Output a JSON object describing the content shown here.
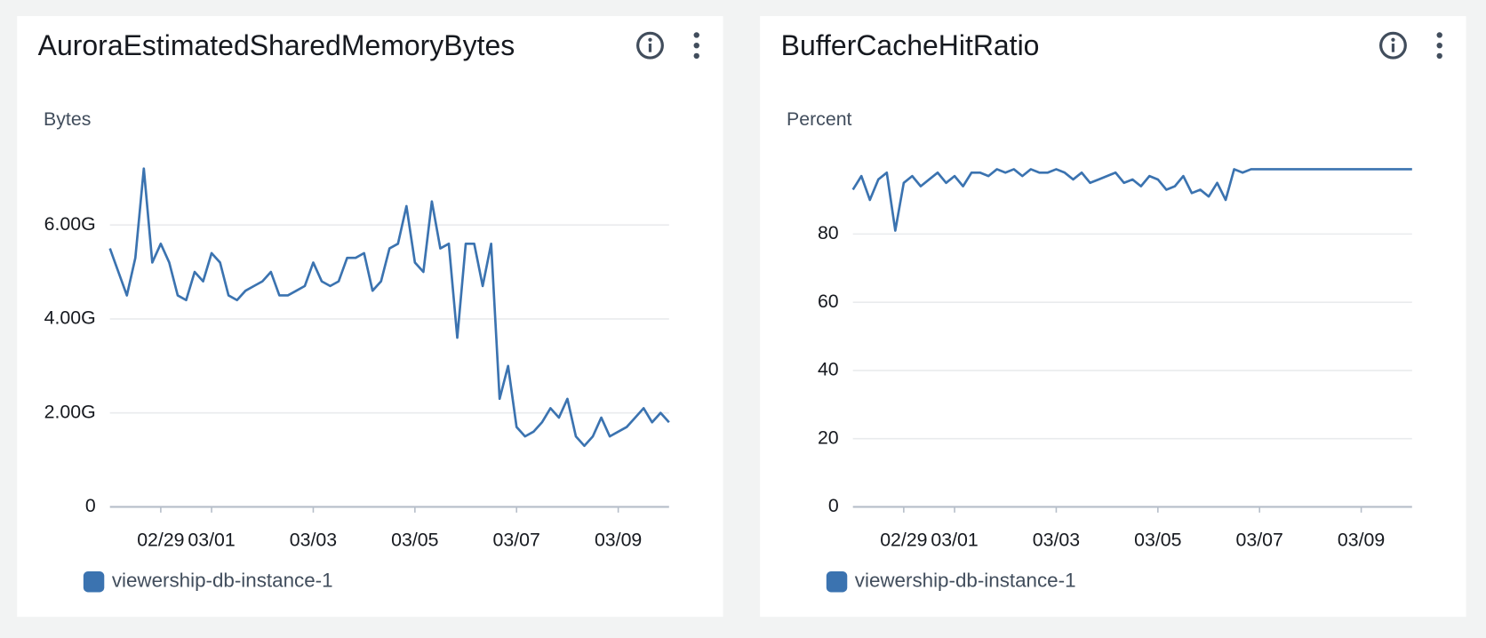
{
  "chart_data": [
    {
      "type": "line",
      "title": "AuroraEstimatedSharedMemoryBytes",
      "y_label": "Bytes",
      "x": [
        "02/28 00:00",
        "02/28 04:00",
        "02/28 08:00",
        "02/28 12:00",
        "02/28 16:00",
        "02/28 20:00",
        "02/29 00:00",
        "02/29 04:00",
        "02/29 08:00",
        "02/29 12:00",
        "02/29 16:00",
        "02/29 20:00",
        "03/01 00:00",
        "03/01 04:00",
        "03/01 08:00",
        "03/01 12:00",
        "03/01 16:00",
        "03/01 20:00",
        "03/02 00:00",
        "03/02 04:00",
        "03/02 08:00",
        "03/02 12:00",
        "03/02 16:00",
        "03/02 20:00",
        "03/03 00:00",
        "03/03 04:00",
        "03/03 08:00",
        "03/03 12:00",
        "03/03 16:00",
        "03/03 20:00",
        "03/04 00:00",
        "03/04 04:00",
        "03/04 08:00",
        "03/04 12:00",
        "03/04 16:00",
        "03/04 20:00",
        "03/05 00:00",
        "03/05 04:00",
        "03/05 08:00",
        "03/05 12:00",
        "03/05 16:00",
        "03/05 20:00",
        "03/06 00:00",
        "03/06 04:00",
        "03/06 08:00",
        "03/06 12:00",
        "03/06 16:00",
        "03/06 20:00",
        "03/07 00:00",
        "03/07 04:00",
        "03/07 08:00",
        "03/07 12:00",
        "03/07 16:00",
        "03/07 20:00",
        "03/08 00:00",
        "03/08 04:00",
        "03/08 08:00",
        "03/08 12:00",
        "03/08 16:00",
        "03/08 20:00",
        "03/09 00:00",
        "03/09 04:00",
        "03/09 08:00",
        "03/09 12:00",
        "03/09 16:00",
        "03/09 20:00",
        "03/10 00:00"
      ],
      "series": [
        {
          "name": "viewership-db-instance-1",
          "color": "#3b73b0",
          "values": [
            5500000000.0,
            5000000000.0,
            4500000000.0,
            5300000000.0,
            7200000000.0,
            5200000000.0,
            5600000000.0,
            5200000000.0,
            4500000000.0,
            4400000000.0,
            5000000000.0,
            4800000000.0,
            5400000000.0,
            5200000000.0,
            4500000000.0,
            4400000000.0,
            4600000000.0,
            4700000000.0,
            4800000000.0,
            5000000000.0,
            4500000000.0,
            4500000000.0,
            4600000000.0,
            4700000000.0,
            5200000000.0,
            4800000000.0,
            4700000000.0,
            4800000000.0,
            5300000000.0,
            5300000000.0,
            5400000000.0,
            4600000000.0,
            4800000000.0,
            5500000000.0,
            5600000000.0,
            6400000000.0,
            5200000000.0,
            5000000000.0,
            6500000000.0,
            5500000000.0,
            5600000000.0,
            3600000000.0,
            5600000000.0,
            5600000000.0,
            4700000000.0,
            5600000000.0,
            2300000000.0,
            3000000000.0,
            1700000000.0,
            1500000000.0,
            1600000000.0,
            1800000000.0,
            2100000000.0,
            1900000000.0,
            2300000000.0,
            1500000000.0,
            1300000000.0,
            1500000000.0,
            1900000000.0,
            1500000000.0,
            1600000000.0,
            1700000000.0,
            1900000000.0,
            2100000000.0,
            1800000000.0,
            2000000000.0,
            1800000000.0
          ]
        }
      ],
      "xlim": [
        "02/28 00:00",
        "03/10 00:00"
      ],
      "xticks": [
        "02/29",
        "03/01",
        "03/03",
        "03/05",
        "03/07",
        "03/09"
      ],
      "ylim": [
        0,
        7500000000.0
      ],
      "yticks": [
        0,
        {
          "value": 2000000000.0,
          "label": "2.00G"
        },
        {
          "value": 4000000000.0,
          "label": "4.00G"
        },
        {
          "value": 6000000000.0,
          "label": "6.00G"
        }
      ],
      "grid": true
    },
    {
      "type": "line",
      "title": "BufferCacheHitRatio",
      "y_label": "Percent",
      "x": [
        "02/28 00:00",
        "02/28 04:00",
        "02/28 08:00",
        "02/28 12:00",
        "02/28 16:00",
        "02/28 20:00",
        "02/29 00:00",
        "02/29 04:00",
        "02/29 08:00",
        "02/29 12:00",
        "02/29 16:00",
        "02/29 20:00",
        "03/01 00:00",
        "03/01 04:00",
        "03/01 08:00",
        "03/01 12:00",
        "03/01 16:00",
        "03/01 20:00",
        "03/02 00:00",
        "03/02 04:00",
        "03/02 08:00",
        "03/02 12:00",
        "03/02 16:00",
        "03/02 20:00",
        "03/03 00:00",
        "03/03 04:00",
        "03/03 08:00",
        "03/03 12:00",
        "03/03 16:00",
        "03/03 20:00",
        "03/04 00:00",
        "03/04 04:00",
        "03/04 08:00",
        "03/04 12:00",
        "03/04 16:00",
        "03/04 20:00",
        "03/05 00:00",
        "03/05 04:00",
        "03/05 08:00",
        "03/05 12:00",
        "03/05 16:00",
        "03/05 20:00",
        "03/06 00:00",
        "03/06 04:00",
        "03/06 08:00",
        "03/06 12:00",
        "03/06 16:00",
        "03/06 20:00",
        "03/07 00:00",
        "03/07 04:00",
        "03/07 08:00",
        "03/07 12:00",
        "03/07 16:00",
        "03/07 20:00",
        "03/08 00:00",
        "03/08 04:00",
        "03/08 08:00",
        "03/08 12:00",
        "03/08 16:00",
        "03/08 20:00",
        "03/09 00:00",
        "03/09 04:00",
        "03/09 08:00",
        "03/09 12:00",
        "03/09 16:00",
        "03/09 20:00",
        "03/10 00:00"
      ],
      "series": [
        {
          "name": "viewership-db-instance-1",
          "color": "#3b73b0",
          "values": [
            93,
            97,
            90,
            96,
            98,
            81,
            95,
            97,
            94,
            96,
            98,
            95,
            97,
            94,
            98,
            98,
            97,
            99,
            98,
            99,
            97,
            99,
            98,
            98,
            99,
            98,
            96,
            98,
            95,
            96,
            97,
            98,
            95,
            96,
            94,
            97,
            96,
            93,
            94,
            97,
            92,
            93,
            91,
            95,
            90,
            99,
            98,
            99,
            99,
            99,
            99,
            99,
            99,
            99,
            99,
            99,
            99,
            99,
            99,
            99,
            99,
            99,
            99,
            99,
            99,
            99,
            99
          ]
        }
      ],
      "xlim": [
        "02/28 00:00",
        "03/10 00:00"
      ],
      "xticks": [
        "02/29",
        "03/01",
        "03/03",
        "03/05",
        "03/07",
        "03/09"
      ],
      "ylim": [
        0,
        100
      ],
      "yticks": [
        0,
        20,
        40,
        60,
        80
      ],
      "grid": true
    }
  ]
}
